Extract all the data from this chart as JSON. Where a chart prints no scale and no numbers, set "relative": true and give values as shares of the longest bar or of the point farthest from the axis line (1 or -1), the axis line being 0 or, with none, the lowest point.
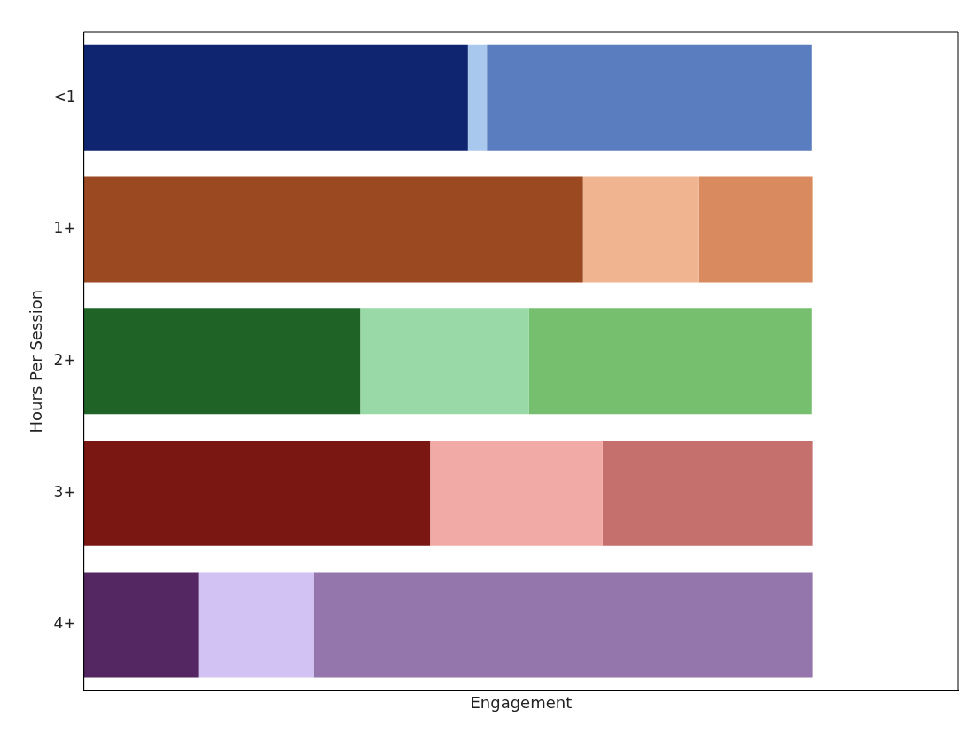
{
  "chart_data": {
    "type": "bar",
    "orientation": "horizontal",
    "stacked": true,
    "relative": true,
    "tick_labels": "y",
    "xlabel": "Engagement",
    "ylabel": "Hours Per Session",
    "categories": [
      "<1",
      "1+",
      "2+",
      "3+",
      "4+"
    ],
    "series": [
      {
        "values": [
          0.527,
          0.685,
          0.379,
          0.475,
          0.157
        ],
        "colors": [
          "#0f2570",
          "#9b4921",
          "#1f6426",
          "#7a1712",
          "#542763"
        ]
      },
      {
        "values": [
          0.026,
          0.158,
          0.232,
          0.237,
          0.158
        ],
        "colors": [
          "#a9c8ee",
          "#f0b490",
          "#98d9a7",
          "#f1aaa6",
          "#d2c2f4"
        ]
      },
      {
        "values": [
          0.446,
          0.157,
          0.388,
          0.288,
          0.685
        ],
        "colors": [
          "#5a7dbf",
          "#d98a5f",
          "#75bf6f",
          "#c5706c",
          "#9475ac"
        ]
      }
    ]
  }
}
